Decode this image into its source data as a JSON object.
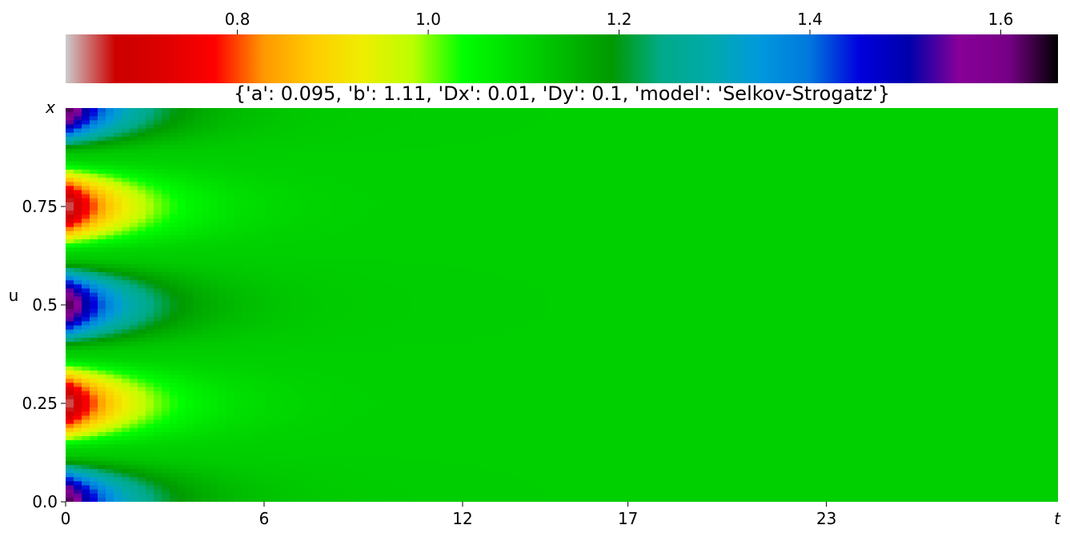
{
  "chart_data": {
    "type": "heatmap",
    "title": "{'a': 0.095, 'b': 1.11, 'Dx': 0.01, 'Dy': 0.1, 'model': 'Selkov-Strogatz'}",
    "xlabel": "t",
    "ylabel": "x",
    "series_label": "u",
    "colormap": "nipy_spectral",
    "colorbar": {
      "placement": "top",
      "range": [
        0.62,
        1.66
      ],
      "ticks": [
        0.8,
        1.0,
        1.2,
        1.4,
        1.6
      ],
      "tick_labels": [
        "0.8",
        "1.0",
        "1.2",
        "1.4",
        "1.6"
      ]
    },
    "x_range": [
      0,
      30
    ],
    "x_ticks": [
      0,
      6,
      12,
      17,
      23
    ],
    "x_tick_labels": [
      "0",
      "6",
      "12",
      "17",
      "23"
    ],
    "y_range": [
      0,
      1
    ],
    "y_ticks": [
      0.0,
      0.25,
      0.5,
      0.75
    ],
    "y_tick_labels": [
      "0.0",
      "0.25",
      "0.5",
      "0.75"
    ],
    "grid": false,
    "steady_state_value": 1.11,
    "pattern": {
      "description_values": {
        "high_value_centers_x": [
          0.0,
          0.5,
          1.0
        ],
        "low_value_centers_x": [
          0.25,
          0.75
        ],
        "peak_high": 1.66,
        "peak_low": 0.62,
        "decay_time": 4
      }
    }
  }
}
